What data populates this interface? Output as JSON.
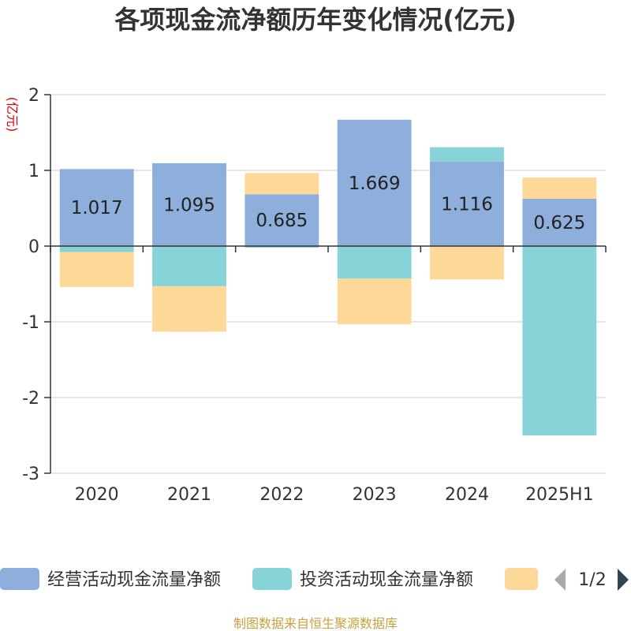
{
  "chart_data": {
    "type": "bar",
    "stacked": true,
    "title": "各项现金流净额历年变化情况(亿元)",
    "unit_label": "(亿元)",
    "categories": [
      "2020",
      "2021",
      "2022",
      "2023",
      "2024",
      "2025H1"
    ],
    "ylim": [
      -3,
      2
    ],
    "yticks": [
      "2",
      "1",
      "0",
      "-1",
      "-2",
      "-3"
    ],
    "grid": true,
    "legend_position": "bottom",
    "series": [
      {
        "name": "经营活动现金流量净额",
        "color": "#8eaedb",
        "values": [
          1.017,
          1.095,
          0.685,
          1.669,
          1.116,
          0.625
        ],
        "labels": [
          "1.017",
          "1.095",
          "0.685",
          "1.669",
          "1.116",
          "0.625"
        ]
      },
      {
        "name": "投资活动现金流量净额",
        "color": "#86d4d8",
        "values": [
          -0.08,
          -0.53,
          -0.02,
          -0.43,
          0.19,
          -2.5
        ]
      },
      {
        "name": "",
        "color": "#fdd898",
        "values": [
          -0.46,
          -0.6,
          0.28,
          -0.6,
          -0.44,
          0.28
        ]
      }
    ]
  },
  "legend": {
    "items": [
      "经营活动现金流量净额",
      "投资活动现金流量净额",
      ""
    ],
    "page": "1/2"
  },
  "footer": {
    "source": "制图数据来自恒生聚源数据库"
  }
}
